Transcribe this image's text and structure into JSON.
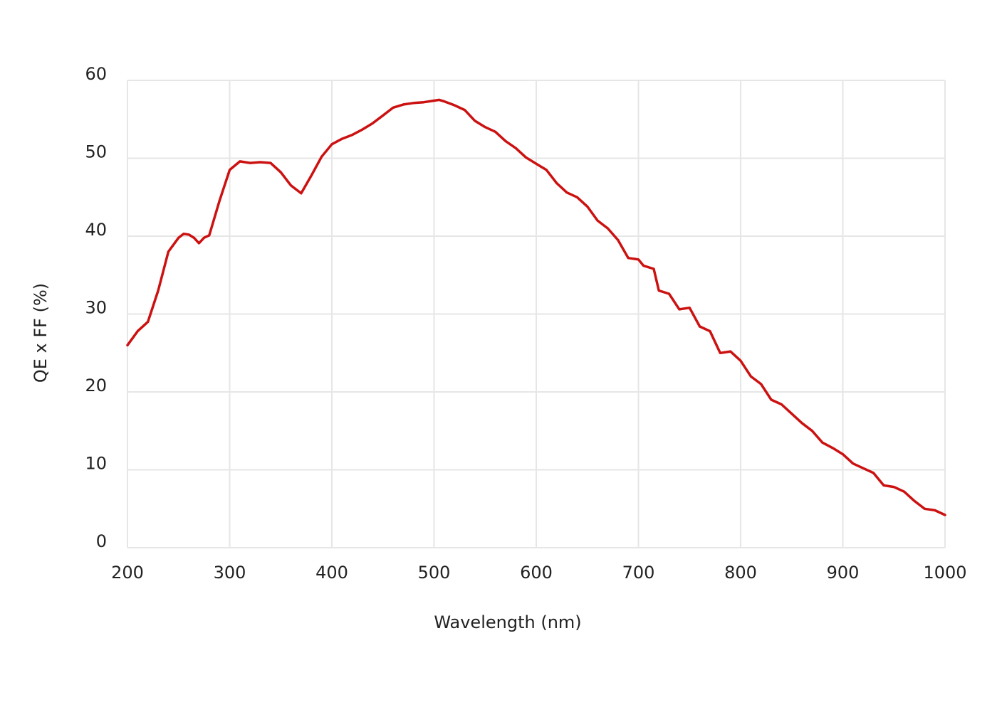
{
  "chart_data": {
    "type": "line",
    "x_label": "Wavelength (nm)",
    "y_label": "QE x FF (%)",
    "x": [
      200,
      210,
      220,
      230,
      240,
      250,
      255,
      260,
      265,
      270,
      275,
      280,
      290,
      300,
      310,
      320,
      330,
      340,
      350,
      360,
      370,
      380,
      390,
      400,
      410,
      420,
      430,
      440,
      450,
      460,
      470,
      480,
      490,
      500,
      505,
      510,
      520,
      530,
      540,
      550,
      560,
      570,
      580,
      590,
      600,
      610,
      620,
      630,
      640,
      650,
      660,
      670,
      680,
      690,
      700,
      705,
      715,
      720,
      730,
      740,
      750,
      760,
      770,
      780,
      790,
      800,
      810,
      820,
      830,
      840,
      850,
      860,
      870,
      880,
      890,
      900,
      910,
      920,
      930,
      940,
      950,
      960,
      970,
      980,
      990,
      1000
    ],
    "values": [
      26,
      27.8,
      29,
      33,
      38,
      39.8,
      40.3,
      40.2,
      39.8,
      39.1,
      39.8,
      40.1,
      44.5,
      48.5,
      49.6,
      49.4,
      49.5,
      49.4,
      48.2,
      46.5,
      45.5,
      47.8,
      50.2,
      51.8,
      52.5,
      53,
      53.7,
      54.5,
      55.5,
      56.5,
      56.9,
      57.1,
      57.2,
      57.4,
      57.5,
      57.3,
      56.8,
      56.2,
      54.8,
      54,
      53.4,
      52.2,
      51.3,
      50.1,
      49.3,
      48.5,
      46.8,
      45.6,
      45,
      43.8,
      42,
      41,
      39.5,
      37.2,
      37,
      36.2,
      35.8,
      33,
      32.6,
      30.6,
      30.8,
      28.4,
      27.8,
      25,
      25.2,
      24,
      22,
      21,
      19,
      18.4,
      17.2,
      16,
      15,
      13.5,
      12.8,
      12,
      10.8,
      10.2,
      9.6,
      8,
      7.8,
      7.2,
      6,
      5,
      4.8,
      4.2
    ],
    "color": "#cc1111",
    "xlim": [
      200,
      1000
    ],
    "xticks": [
      200,
      300,
      400,
      500,
      600,
      700,
      800,
      900,
      1000
    ],
    "ylim": [
      0,
      60
    ],
    "yticks": [
      0,
      10,
      20,
      30,
      40,
      50,
      60
    ],
    "grid": true
  }
}
